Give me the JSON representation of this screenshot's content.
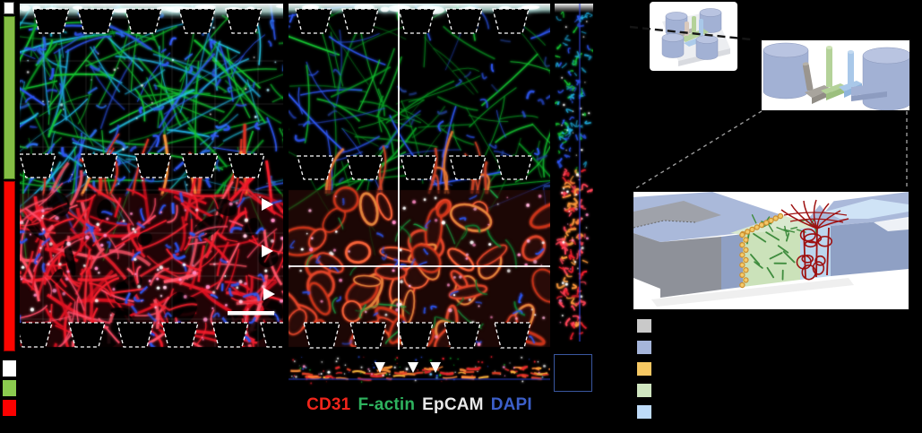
{
  "stains": [
    {
      "label": "CD31",
      "color": "#f1251b"
    },
    {
      "label": "F-actin",
      "color": "#2eb25e"
    },
    {
      "label": "EpCAM",
      "color": "#e9e9e9"
    },
    {
      "label": "DAPI",
      "color": "#3c5fc9"
    }
  ],
  "left_scale_column": {
    "top_swatch_color": "#ffffff",
    "green_bar_color": "#84bd44",
    "green_bar_border": "#3c6b1a",
    "red_bar_color": "#fb0500",
    "red_bar_border": "#8a0200"
  },
  "left_legend_swatches": [
    "#ffffff",
    "#8bcb4f",
    "#fb0100"
  ],
  "right_legend_swatches": [
    "#c9c9c9",
    "#a5b5da",
    "#f6c863",
    "#cfe5c0",
    "#bedbf8"
  ],
  "microscopy_palette": {
    "background": "#000000",
    "factin_green": "#15c231",
    "factin_dim": "#0b9a24",
    "cyan": "#25c8e8",
    "dapi_blue": "#2d55ee",
    "cd31_red": "#f3202e",
    "cd31_deep": "#d81020",
    "pink": "#ff8ac4",
    "white": "#ffffff",
    "orange": "#ff9a3c",
    "grid_line": "rgba(255,255,255,0.20)",
    "post_outline": "#ffffff",
    "crosshair": "#ffffff",
    "ortho_line_blue": "#3246dc",
    "inset_border": "#3a57a0",
    "scale_bar": "#ffffff"
  },
  "device_palette": {
    "card_bg": "#ffffff",
    "body": "#a2b1d4",
    "body_top": "#b9c4e1",
    "body_dark": "#8d9cc0",
    "plate": "#eceef1",
    "plate_side": "#d9dbe0",
    "gray_pin": "#9a958f",
    "gray_pin_top": "#b5b0a8",
    "green_part": "#b4d299",
    "green_part_top": "#cfe3b8",
    "blue_part": "#a9c8e9",
    "blue_part_top": "#c2d9f0",
    "tan_pin": "#d9c9bd",
    "dash_black": "#151515",
    "dash_gray": "#9a9a9a"
  },
  "schematic_palette": {
    "card_bg": "#ffffff",
    "gray_top": "#a4a7ae",
    "gray_front": "#8e9199",
    "gray_channel": "#9fa2aa",
    "blue_top": "#aab9da",
    "blue_front": "#8fa0c4",
    "green_top": "#d9e9cf",
    "green_front": "#cbe2ba",
    "cell_green": "#3f8c3e",
    "membrane_fill": "#f3c96a",
    "membrane_stroke": "#cd9030",
    "vessel_red": "#9e1111",
    "vascular_front": "#bcd6ee",
    "channel_blue_top": "#cfe3f6",
    "shadow": "#e2e2e2"
  }
}
